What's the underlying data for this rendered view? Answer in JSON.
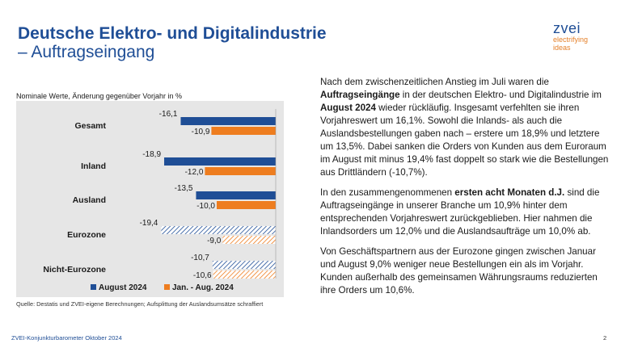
{
  "header": {
    "title_line1": "Deutsche Elektro- und Digitalindustrie",
    "title_line2": "– Auftragseingang"
  },
  "logo": {
    "word": "zvei",
    "tagline_1": "electrifying",
    "tagline_2": "ideas"
  },
  "chart_subtitle": "Nominale Werte, Änderung gegenüber Vorjahr in %",
  "chart_data": {
    "type": "bar",
    "orientation": "horizontal",
    "categories": [
      "Gesamt",
      "Inland",
      "Ausland",
      "Eurozone",
      "Nicht-Eurozone"
    ],
    "series": [
      {
        "name": "August 2024",
        "values": [
          -16.1,
          -18.9,
          -13.5,
          -19.4,
          -10.7
        ],
        "labels": [
          "-16,1",
          "-18,9",
          "-13,5",
          "-19,4",
          "-10,7"
        ],
        "color": "#1f4e96",
        "hatched": [
          false,
          false,
          false,
          true,
          true
        ]
      },
      {
        "name": "Jan. - Aug. 2024",
        "values": [
          -10.9,
          -12.0,
          -10.0,
          -9.0,
          -10.6
        ],
        "labels": [
          "-10,9",
          "-12,0",
          "-10,0",
          "-9,0",
          "-10,6"
        ],
        "color": "#ee7d1f",
        "hatched": [
          false,
          false,
          false,
          true,
          true
        ]
      }
    ],
    "legend_position": "bottom",
    "background": "#e6e6e6"
  },
  "source": "Quelle: Destatis und ZVEI-eigene Berechnungen; Aufsplittung der Auslandsumsätze schraffiert",
  "text": {
    "p1": [
      {
        "t": "Nach dem zwischenzeitlichen Anstieg im Juli waren die ",
        "b": false
      },
      {
        "t": "Auftragseingänge",
        "b": true
      },
      {
        "t": " in der deutschen Elektro- und Digitalindustrie im ",
        "b": false
      },
      {
        "t": "August 2024",
        "b": true
      },
      {
        "t": " wieder rückläufig. Insgesamt verfehlten sie ihren Vorjahreswert um 16,1%. Sowohl die Inlands- als auch die Auslandsbestellungen gaben nach – erstere um 18,9% und letztere um 13,5%. Dabei sanken die Orders von Kunden aus dem Euroraum im August mit minus 19,4% fast doppelt so stark wie die Bestellungen aus Drittländern (-10,7%).",
        "b": false
      }
    ],
    "p2": [
      {
        "t": "In den zusammengenommenen ",
        "b": false
      },
      {
        "t": "ersten acht Monaten d.J.",
        "b": true
      },
      {
        "t": " sind die Auftragseingänge in unserer Branche um 10,9% hinter dem entsprechenden Vorjahreswert zurückgeblieben. Hier nahmen die Inlandsorders um 12,0% und die Auslandsaufträge um 10,0% ab.",
        "b": false
      }
    ],
    "p3": [
      {
        "t": "Von Geschäftspartnern aus der Eurozone gingen zwischen Januar und August 9,0% weniger neue Bestellungen ein als im Vorjahr. Kunden außerhalb des gemeinsamen Währungsraums reduzierten ihre Orders um 10,6%.",
        "b": false
      }
    ]
  },
  "footer": {
    "left": "ZVEI-Konjunkturbarometer Oktober 2024",
    "page": "2"
  }
}
